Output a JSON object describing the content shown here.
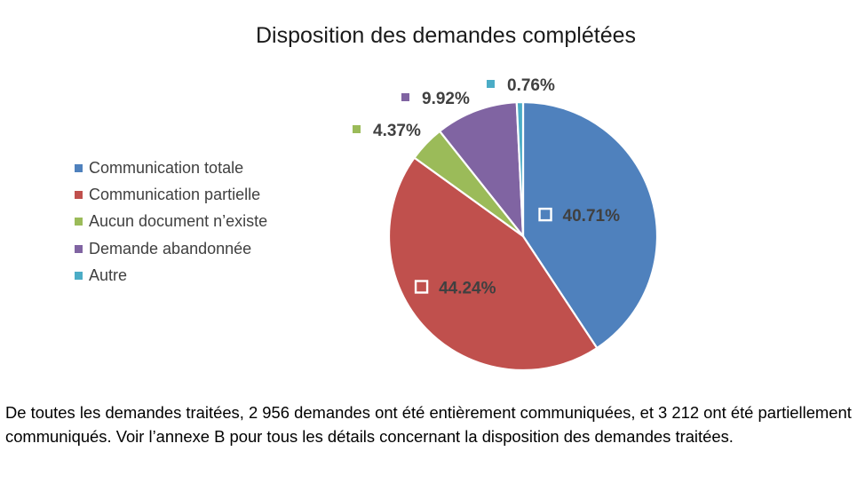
{
  "chart_data": {
    "type": "pie",
    "title": "Disposition des demandes complétées",
    "categories": [
      "Communication totale",
      "Communication partielle",
      "Aucun document n’existe",
      "Demande abandonnée",
      "Autre"
    ],
    "values": [
      40.71,
      44.24,
      4.37,
      9.92,
      0.76
    ],
    "data_labels": [
      "40.71%",
      "44.24%",
      "4.37%",
      "9.92%",
      "0.76%"
    ],
    "colors": [
      "#4f81bd",
      "#c0504d",
      "#9bbb59",
      "#8064a2",
      "#4bacc6"
    ],
    "legend_position": "left",
    "start_angle_deg": 0,
    "direction": "clockwise"
  },
  "caption": "De toutes les demandes traitées, 2 956 demandes ont été entièrement communiquées, et 3 212 ont été partiellement communiqués. Voir l’annexe B pour tous les détails concernant la disposition des demandes traitées."
}
